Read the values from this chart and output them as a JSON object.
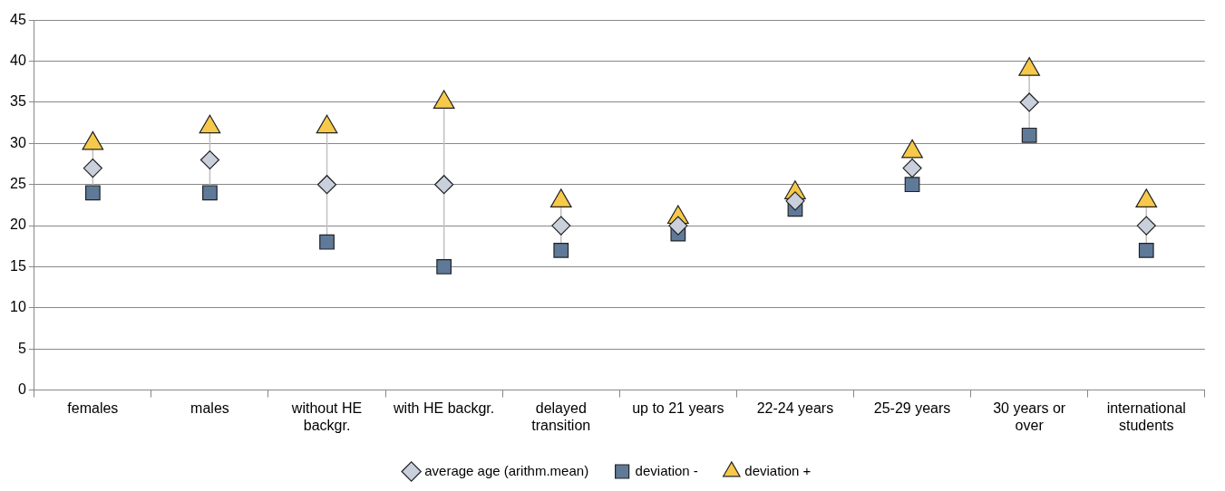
{
  "chart_data": {
    "type": "scatter",
    "categories": [
      "females",
      "males",
      "without HE backgr.",
      "with HE backgr.",
      "delayed transition",
      "up to 21 years",
      "22-24 years",
      "25-29 years",
      "30 years or over",
      "international students"
    ],
    "series": [
      {
        "name": "average age (arithm.mean)",
        "color": "#c9d0dc",
        "marker": "diamond",
        "values": [
          27,
          28,
          25,
          25,
          20,
          20,
          23,
          27,
          35,
          20
        ]
      },
      {
        "name": "deviation -",
        "color": "#5f7999",
        "marker": "square",
        "values": [
          24,
          24,
          18,
          15,
          17,
          19,
          22,
          25,
          31,
          17
        ]
      },
      {
        "name": "deviation +",
        "color": "#f7c94a",
        "marker": "triangle",
        "values": [
          30,
          32,
          32,
          35,
          23,
          21,
          24,
          29,
          39,
          23
        ]
      }
    ],
    "ylim": [
      0,
      45
    ],
    "yticks": [
      0,
      5,
      10,
      15,
      20,
      25,
      30,
      35,
      40,
      45
    ],
    "grid": "y",
    "legend": "bottom"
  }
}
